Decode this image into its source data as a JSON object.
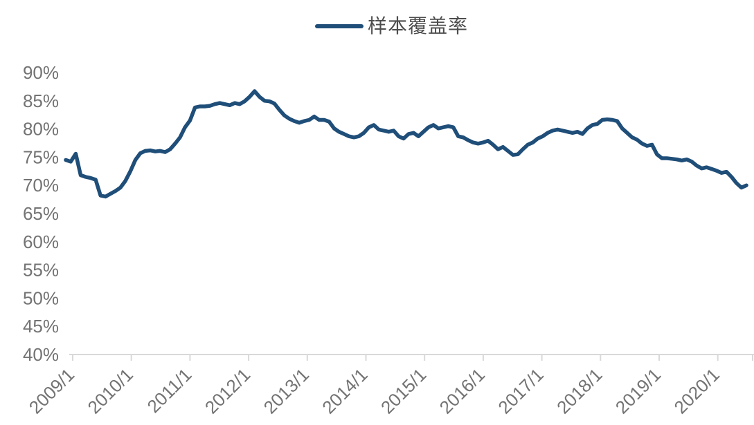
{
  "page": {
    "background": "#ffffff"
  },
  "legend": {
    "label": "样本覆盖率"
  },
  "chart_data": {
    "type": "line",
    "title": "",
    "xlabel": "",
    "ylabel": "",
    "grid": false,
    "legend_position": "top-center",
    "line_color": "#1f4e79",
    "axis_color": "#d9d9d9",
    "tick_label_color": "#737373",
    "ylim": [
      40,
      90
    ],
    "y_tick_labels": [
      "90%",
      "85%",
      "80%",
      "75%",
      "70%",
      "65%",
      "60%",
      "55%",
      "50%",
      "45%",
      "40%"
    ],
    "y_tick_values": [
      90,
      85,
      80,
      75,
      70,
      65,
      60,
      55,
      50,
      45,
      40
    ],
    "x_tick_labels": [
      "2009/1",
      "2010/1",
      "2011/1",
      "2012/1",
      "2013/1",
      "2014/1",
      "2015/1",
      "2016/1",
      "2017/1",
      "2018/1",
      "2019/1",
      "2020/1"
    ],
    "series": [
      {
        "name": "样本覆盖率",
        "start": "2009/1",
        "frequency": "monthly",
        "unit": "%",
        "values": [
          74.5,
          74.2,
          75.6,
          71.8,
          71.5,
          71.3,
          71.0,
          68.2,
          68.0,
          68.5,
          69.0,
          69.6,
          70.8,
          72.5,
          74.5,
          75.7,
          76.1,
          76.2,
          76.0,
          76.1,
          75.9,
          76.4,
          77.4,
          78.5,
          80.3,
          81.5,
          83.8,
          84.0,
          84.0,
          84.1,
          84.4,
          84.6,
          84.4,
          84.2,
          84.6,
          84.4,
          84.9,
          85.7,
          86.7,
          85.7,
          85.0,
          84.9,
          84.5,
          83.4,
          82.4,
          81.8,
          81.4,
          81.1,
          81.4,
          81.6,
          82.2,
          81.6,
          81.6,
          81.3,
          80.1,
          79.5,
          79.1,
          78.7,
          78.5,
          78.7,
          79.3,
          80.3,
          80.7,
          79.9,
          79.7,
          79.5,
          79.7,
          78.7,
          78.3,
          79.1,
          79.3,
          78.7,
          79.5,
          80.3,
          80.7,
          80.1,
          80.3,
          80.5,
          80.3,
          78.7,
          78.5,
          78.0,
          77.6,
          77.4,
          77.6,
          77.9,
          77.2,
          76.4,
          76.8,
          76.1,
          75.4,
          75.5,
          76.4,
          77.2,
          77.6,
          78.3,
          78.7,
          79.3,
          79.7,
          79.9,
          79.7,
          79.5,
          79.3,
          79.5,
          79.1,
          80.1,
          80.7,
          80.9,
          81.6,
          81.7,
          81.6,
          81.4,
          80.1,
          79.3,
          78.5,
          78.1,
          77.4,
          77.0,
          77.2,
          75.5,
          74.8,
          74.8,
          74.7,
          74.6,
          74.4,
          74.6,
          74.2,
          73.5,
          73.0,
          73.2,
          72.9,
          72.6,
          72.2,
          72.4,
          71.5,
          70.4,
          69.6,
          70.0
        ]
      }
    ]
  }
}
